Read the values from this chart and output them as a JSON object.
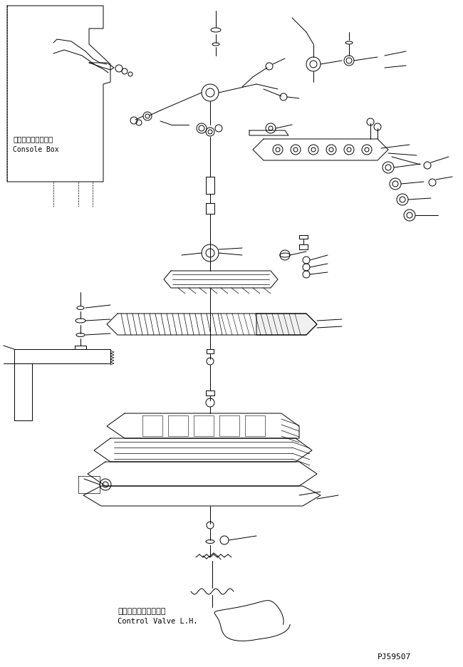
{
  "bg_color": "#ffffff",
  "line_color": "#000000",
  "fig_width": 6.5,
  "fig_height": 9.36,
  "dpi": 100,
  "label_console_jp": "コンソールボックス",
  "label_console_en": "Console Box",
  "label_valve_jp": "コントロールバルブ左",
  "label_valve_en": "Control Valve L.H.",
  "part_number": "PJ59507",
  "lw": 0.7
}
